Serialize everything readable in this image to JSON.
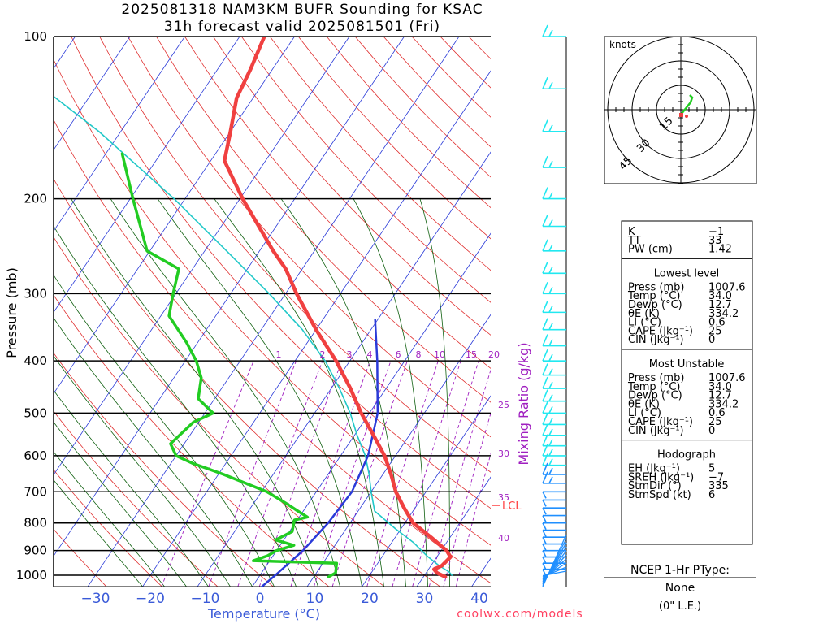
{
  "title": {
    "line1": "2025081318 NAM3KM BUFR Sounding for KSAC",
    "line2": "31h forecast valid 2025081501 (Fri)"
  },
  "axes": {
    "ylabel": "Pressure (mb)",
    "xlabel": "Temperature (°C)",
    "mr_label": "Mixing Ratio (g/kg)",
    "p_ticks": [
      100,
      200,
      300,
      400,
      500,
      600,
      700,
      800,
      900,
      1000
    ],
    "t_ticks": [
      -30,
      -20,
      -10,
      0,
      10,
      20,
      30,
      40
    ],
    "p_range": [
      1050,
      100
    ],
    "t_range": [
      -38,
      42
    ],
    "y_scale": "log"
  },
  "colors": {
    "temp": "#f04040",
    "dewpoint": "#22cc22",
    "parcel": "#2a3ad8",
    "virtual": "#20c8c8",
    "isotherm": "#2a3ad8",
    "dry_adiabat": "#e03030",
    "moist_adiabat": "#106010",
    "mixing_ratio": "#a020c0",
    "wind_upper": "#22e8f0",
    "wind_lower": "#1f8fff",
    "credit": "#ff4060",
    "lcl": "#ff4040"
  },
  "mixing_ratio_labels": {
    "top": [
      "1",
      "2",
      "3",
      "4",
      "6",
      "8",
      "10",
      "15",
      "20"
    ],
    "side": [
      "25",
      "30",
      "35",
      "40"
    ]
  },
  "lcl_label": "LCL",
  "chart_data": {
    "type": "line",
    "x_axis": "temperature_C (skewed)",
    "y_axis": "pressure_mb (log, inverted)",
    "grid": true,
    "series": [
      {
        "key": "temperature",
        "points": [
          {
            "p": 1007,
            "t": 34.0
          },
          {
            "p": 990,
            "t": 32.0
          },
          {
            "p": 975,
            "t": 31.0
          },
          {
            "p": 960,
            "t": 32.0
          },
          {
            "p": 925,
            "t": 32.5
          },
          {
            "p": 900,
            "t": 31.0
          },
          {
            "p": 850,
            "t": 26.5
          },
          {
            "p": 800,
            "t": 21.5
          },
          {
            "p": 750,
            "t": 18.0
          },
          {
            "p": 700,
            "t": 14.5
          },
          {
            "p": 650,
            "t": 11.5
          },
          {
            "p": 600,
            "t": 8.0
          },
          {
            "p": 550,
            "t": 3.5
          },
          {
            "p": 500,
            "t": -1.5
          },
          {
            "p": 450,
            "t": -6.5
          },
          {
            "p": 400,
            "t": -12.5
          },
          {
            "p": 350,
            "t": -20.0
          },
          {
            "p": 300,
            "t": -28.0
          },
          {
            "p": 270,
            "t": -33.0
          },
          {
            "p": 250,
            "t": -37.5
          },
          {
            "p": 200,
            "t": -49.5
          },
          {
            "p": 170,
            "t": -57.5
          },
          {
            "p": 150,
            "t": -60.0
          },
          {
            "p": 130,
            "t": -63.0
          },
          {
            "p": 115,
            "t": -64.0
          },
          {
            "p": 100,
            "t": -65.5
          }
        ]
      },
      {
        "key": "dewpoint",
        "points": [
          {
            "p": 1007,
            "t": 12.7
          },
          {
            "p": 990,
            "t": 13.5
          },
          {
            "p": 950,
            "t": 12.5
          },
          {
            "p": 940,
            "t": -3.0
          },
          {
            "p": 920,
            "t": -1.0
          },
          {
            "p": 900,
            "t": 0.0
          },
          {
            "p": 880,
            "t": 2.5
          },
          {
            "p": 860,
            "t": -1.5
          },
          {
            "p": 830,
            "t": 0.5
          },
          {
            "p": 790,
            "t": -0.5
          },
          {
            "p": 780,
            "t": 1.5
          },
          {
            "p": 760,
            "t": -1.0
          },
          {
            "p": 740,
            "t": -3.5
          },
          {
            "p": 700,
            "t": -9.0
          },
          {
            "p": 650,
            "t": -19.0
          },
          {
            "p": 620,
            "t": -26.0
          },
          {
            "p": 600,
            "t": -30.0
          },
          {
            "p": 570,
            "t": -32.5
          },
          {
            "p": 520,
            "t": -31.0
          },
          {
            "p": 500,
            "t": -28.5
          },
          {
            "p": 470,
            "t": -33.0
          },
          {
            "p": 430,
            "t": -35.0
          },
          {
            "p": 400,
            "t": -38.0
          },
          {
            "p": 370,
            "t": -42.0
          },
          {
            "p": 330,
            "t": -48.5
          },
          {
            "p": 300,
            "t": -50.5
          },
          {
            "p": 270,
            "t": -52.5
          },
          {
            "p": 250,
            "t": -60.5
          },
          {
            "p": 200,
            "t": -69.5
          },
          {
            "p": 165,
            "t": -77.0
          }
        ]
      },
      {
        "key": "parcel",
        "points": [
          {
            "p": 1050,
            "t": 1.0
          },
          {
            "p": 1000,
            "t": 2.8
          },
          {
            "p": 900,
            "t": 4.8
          },
          {
            "p": 800,
            "t": 6.0
          },
          {
            "p": 700,
            "t": 6.5
          },
          {
            "p": 600,
            "t": 5.0
          },
          {
            "p": 500,
            "t": 1.5
          },
          {
            "p": 400,
            "t": -5.0
          },
          {
            "p": 335,
            "t": -10.5
          }
        ]
      },
      {
        "key": "virtual",
        "points": [
          {
            "p": 1000,
            "t": 35.0
          },
          {
            "p": 985,
            "t": 34.0
          },
          {
            "p": 960,
            "t": 31.5
          },
          {
            "p": 920,
            "t": 28.0
          },
          {
            "p": 870,
            "t": 24.0
          },
          {
            "p": 820,
            "t": 19.0
          },
          {
            "p": 760,
            "t": 13.0
          },
          {
            "p": 700,
            "t": 10.0
          },
          {
            "p": 650,
            "t": 7.5
          },
          {
            "p": 600,
            "t": 4.5
          },
          {
            "p": 550,
            "t": 0.5
          },
          {
            "p": 500,
            "t": -3.5
          },
          {
            "p": 450,
            "t": -8.5
          },
          {
            "p": 400,
            "t": -14.5
          },
          {
            "p": 350,
            "t": -22.5
          },
          {
            "p": 300,
            "t": -33.0
          },
          {
            "p": 250,
            "t": -46.0
          },
          {
            "p": 200,
            "t": -62.0
          },
          {
            "p": 150,
            "t": -84.0
          },
          {
            "p": 100,
            "t": -118.0
          }
        ]
      }
    ]
  },
  "hodograph": {
    "unit_label": "knots",
    "ring_labels": [
      "15",
      "30",
      "45"
    ]
  },
  "stats": {
    "indices": [
      {
        "label": "K",
        "value": "−1"
      },
      {
        "label": "TT",
        "value": "33"
      },
      {
        "label": "PW (cm)",
        "value": "1.42"
      }
    ],
    "lowest_level": {
      "heading": "Lowest level",
      "rows": [
        {
          "label": "Press (mb)",
          "value": "1007.6"
        },
        {
          "label": "Temp (°C)",
          "value": "34.0"
        },
        {
          "label": "Dewp (°C)",
          "value": "12.7"
        },
        {
          "label": "θE (K)",
          "value": "334.2"
        },
        {
          "label": "LI (°C)",
          "value": "0.6"
        },
        {
          "label": "CAPE (Jkg⁻¹)",
          "value": "25"
        },
        {
          "label": "CIN (Jkg⁻¹)",
          "value": "0"
        }
      ]
    },
    "most_unstable": {
      "heading": "Most Unstable",
      "rows": [
        {
          "label": "Press (mb)",
          "value": "1007.6"
        },
        {
          "label": "Temp (°C)",
          "value": "34.0"
        },
        {
          "label": "Dewp (°C)",
          "value": "12.7"
        },
        {
          "label": "θE (K)",
          "value": "334.2"
        },
        {
          "label": "LI (°C)",
          "value": "0.6"
        },
        {
          "label": "CAPE (Jkg⁻¹)",
          "value": "25"
        },
        {
          "label": "CIN (Jkg⁻¹)",
          "value": "0"
        }
      ]
    },
    "hodograph_block": {
      "heading": "Hodograph",
      "rows": [
        {
          "label": "EH (Jkg⁻¹)",
          "value": "5"
        },
        {
          "label": "SREH (Jkg⁻¹)",
          "value": "−7"
        },
        {
          "label": "StmDir (°)",
          "value": "335"
        },
        {
          "label": "StmSpd (kt)",
          "value": "6"
        }
      ]
    }
  },
  "ptype": {
    "heading": "NCEP 1-Hr PType:",
    "value": "None",
    "detail": "(0\" L.E.)"
  },
  "credit": "coolwx.com/models"
}
